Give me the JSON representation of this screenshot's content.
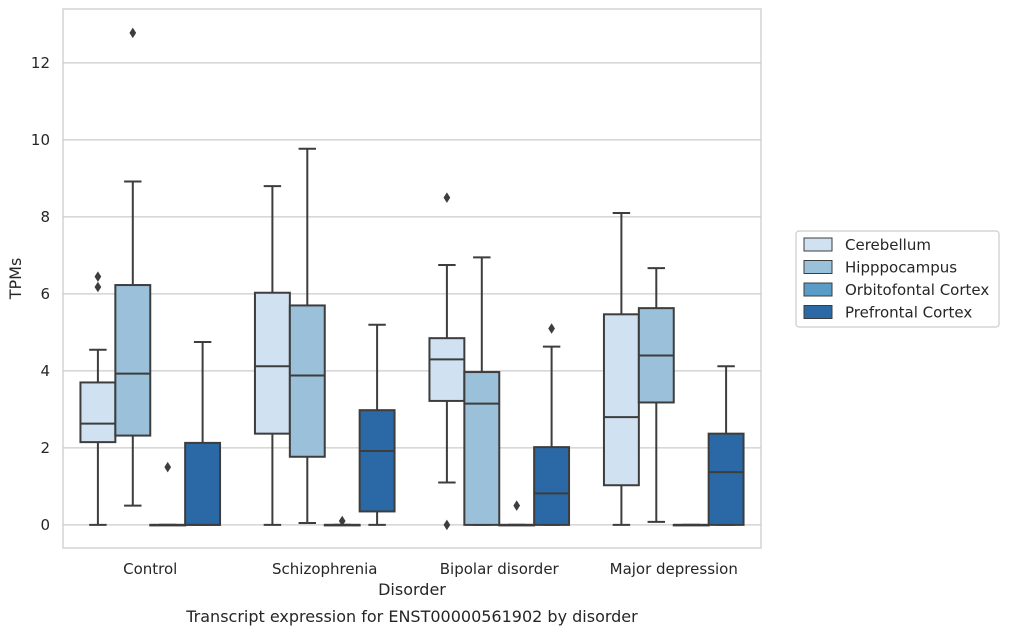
{
  "chart_data": {
    "type": "box",
    "caption": "Transcript expression for ENST00000561902 by disorder",
    "xlabel": "Disorder",
    "ylabel": "TPMs",
    "ylim": [
      -0.6,
      13.4
    ],
    "yticks": [
      0,
      2,
      4,
      6,
      8,
      10,
      12
    ],
    "grid": "horizontal",
    "legend_position": "right",
    "categories": [
      "Control",
      "Schizophrenia",
      "Bipolar disorder",
      "Major depression"
    ],
    "series": [
      {
        "name": "Cerebellum",
        "color": "#d0e1f2",
        "boxes": [
          {
            "whislo": 0,
            "q1": 2.15,
            "med": 2.63,
            "q3": 3.7,
            "whishi": 4.55,
            "fliers": [
              6.18,
              6.45
            ]
          },
          {
            "whislo": 0,
            "q1": 2.37,
            "med": 4.12,
            "q3": 6.03,
            "whishi": 8.8,
            "fliers": []
          },
          {
            "whislo": 1.1,
            "q1": 3.22,
            "med": 4.3,
            "q3": 4.85,
            "whishi": 6.75,
            "fliers": [
              0,
              8.5
            ]
          },
          {
            "whislo": 0,
            "q1": 1.03,
            "med": 2.8,
            "q3": 5.47,
            "whishi": 8.1,
            "fliers": []
          }
        ]
      },
      {
        "name": "Hipppocampus",
        "color": "#9ac0da",
        "boxes": [
          {
            "whislo": 0.5,
            "q1": 2.32,
            "med": 3.93,
            "q3": 6.23,
            "whishi": 8.92,
            "fliers": [
              12.78
            ]
          },
          {
            "whislo": 0.05,
            "q1": 1.77,
            "med": 3.88,
            "q3": 5.7,
            "whishi": 9.77,
            "fliers": []
          },
          {
            "whislo": 0,
            "q1": 0,
            "med": 3.15,
            "q3": 3.97,
            "whishi": 6.95,
            "fliers": []
          },
          {
            "whislo": 0.08,
            "q1": 3.18,
            "med": 4.4,
            "q3": 5.63,
            "whishi": 6.67,
            "fliers": []
          }
        ]
      },
      {
        "name": "Orbitofontal Cortex",
        "color": "#5a9cc8",
        "boxes": [
          {
            "whislo": 0,
            "q1": 0,
            "med": 0,
            "q3": 0,
            "whishi": 0,
            "fliers": [
              1.5
            ]
          },
          {
            "whislo": 0,
            "q1": 0,
            "med": 0,
            "q3": 0,
            "whishi": 0,
            "fliers": [
              0.1
            ]
          },
          {
            "whislo": 0,
            "q1": 0,
            "med": 0,
            "q3": 0,
            "whishi": 0,
            "fliers": [
              0.5
            ]
          },
          {
            "whislo": 0,
            "q1": 0,
            "med": 0,
            "q3": 0,
            "whishi": 0,
            "fliers": []
          }
        ]
      },
      {
        "name": "Prefrontal Cortex",
        "color": "#2a68a6",
        "boxes": [
          {
            "whislo": 0,
            "q1": 0,
            "med": 0,
            "q3": 2.13,
            "whishi": 4.75,
            "fliers": []
          },
          {
            "whislo": 0,
            "q1": 0.35,
            "med": 1.92,
            "q3": 2.98,
            "whishi": 5.2,
            "fliers": []
          },
          {
            "whislo": 0,
            "q1": 0,
            "med": 0.82,
            "q3": 2.02,
            "whishi": 4.63,
            "fliers": [
              5.1
            ]
          },
          {
            "whislo": 0,
            "q1": 0,
            "med": 1.37,
            "q3": 2.37,
            "whishi": 4.12,
            "fliers": []
          }
        ]
      }
    ]
  }
}
